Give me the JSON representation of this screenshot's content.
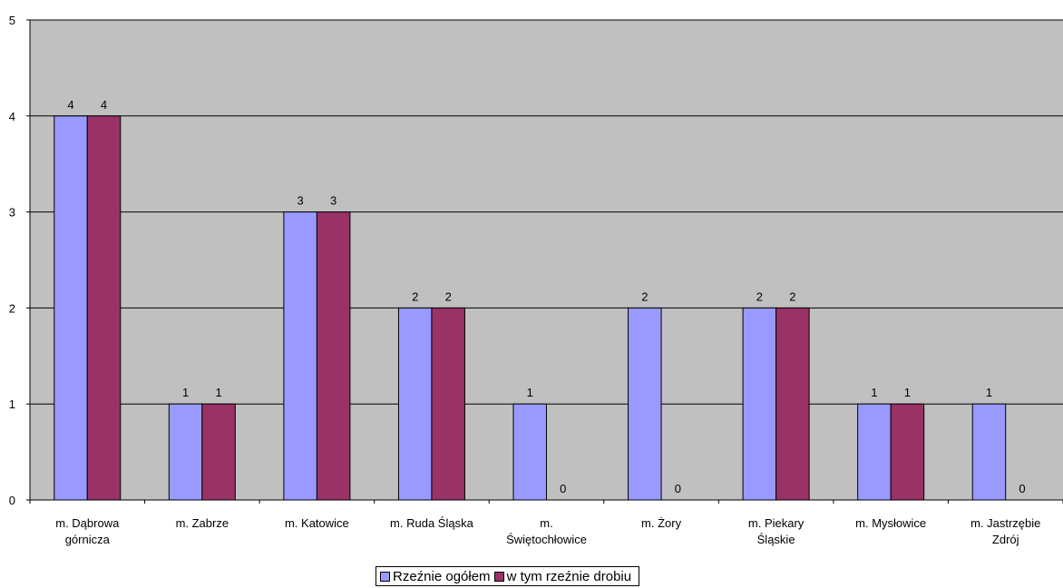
{
  "chart_data": {
    "type": "bar",
    "categories": [
      [
        "m. Dąbrowa",
        "górnicza"
      ],
      [
        "m. Zabrze"
      ],
      [
        "m. Katowice"
      ],
      [
        "m. Ruda Śląska"
      ],
      [
        "m.",
        "Świętochłowice"
      ],
      [
        "m. Żory"
      ],
      [
        "m. Piekary",
        "Śląskie"
      ],
      [
        "m. Mysłowice"
      ],
      [
        "m. Jastrzębie",
        "Zdrój"
      ]
    ],
    "series": [
      {
        "name": "Rzeźnie ogółem",
        "color": "#9999ff",
        "values": [
          4,
          1,
          3,
          2,
          1,
          2,
          2,
          1,
          1
        ]
      },
      {
        "name": "w tym rzeźnie drobiu",
        "color": "#993366",
        "values": [
          4,
          1,
          3,
          2,
          0,
          0,
          2,
          1,
          0
        ]
      }
    ],
    "ylim": [
      0,
      5
    ],
    "yticks": [
      0,
      1,
      2,
      3,
      4,
      5
    ],
    "grid": true,
    "plot_background": "#c0c0c0",
    "legend_position": "bottom"
  }
}
